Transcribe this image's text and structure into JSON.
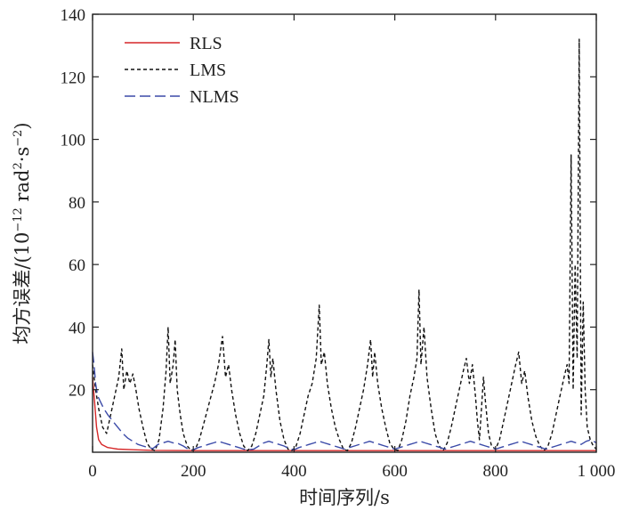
{
  "chart_data": {
    "type": "line",
    "xlabel": "时间序列/s",
    "ylabel_main": "均方误差/(10",
    "ylabel_exp1": "−12",
    "ylabel_mid": " rad",
    "ylabel_exp2": "2",
    "ylabel_mid2": "·s",
    "ylabel_exp3": "−2",
    "ylabel_end": ")",
    "xlim": [
      0,
      1000
    ],
    "ylim": [
      0,
      140
    ],
    "xticks": [
      0,
      200,
      400,
      600,
      800,
      1000
    ],
    "xtick_labels": [
      "0",
      "200",
      "400",
      "600",
      "800",
      "1 000"
    ],
    "yticks": [
      20,
      40,
      60,
      80,
      100,
      120,
      140
    ],
    "ytick_labels": [
      "20",
      "40",
      "60",
      "80",
      "100",
      "120",
      "140"
    ],
    "legend_position": "top-left",
    "series": [
      {
        "name": "RLS",
        "color": "#d62728",
        "dash": "solid",
        "points": [
          [
            0,
            24
          ],
          [
            4,
            16
          ],
          [
            8,
            8
          ],
          [
            12,
            4
          ],
          [
            18,
            2.5
          ],
          [
            30,
            1.5
          ],
          [
            50,
            1.0
          ],
          [
            80,
            0.8
          ],
          [
            120,
            0.6
          ],
          [
            200,
            0.5
          ],
          [
            300,
            0.5
          ],
          [
            400,
            0.5
          ],
          [
            500,
            0.5
          ],
          [
            600,
            0.5
          ],
          [
            700,
            0.5
          ],
          [
            800,
            0.5
          ],
          [
            900,
            0.5
          ],
          [
            1000,
            0.5
          ]
        ]
      },
      {
        "name": "LMS",
        "color": "#111111",
        "dash": "4,3",
        "points": [
          [
            0,
            28
          ],
          [
            6,
            20
          ],
          [
            12,
            14
          ],
          [
            20,
            8
          ],
          [
            28,
            6
          ],
          [
            36,
            12
          ],
          [
            44,
            18
          ],
          [
            52,
            24
          ],
          [
            58,
            33
          ],
          [
            62,
            20
          ],
          [
            68,
            26
          ],
          [
            74,
            22
          ],
          [
            80,
            25
          ],
          [
            86,
            20
          ],
          [
            92,
            14
          ],
          [
            100,
            8
          ],
          [
            108,
            3
          ],
          [
            116,
            1
          ],
          [
            124,
            0.5
          ],
          [
            132,
            4
          ],
          [
            140,
            14
          ],
          [
            146,
            26
          ],
          [
            150,
            40
          ],
          [
            154,
            22
          ],
          [
            160,
            28
          ],
          [
            164,
            36
          ],
          [
            168,
            20
          ],
          [
            174,
            12
          ],
          [
            180,
            6
          ],
          [
            188,
            2
          ],
          [
            196,
            0.5
          ],
          [
            204,
            1
          ],
          [
            212,
            4
          ],
          [
            222,
            10
          ],
          [
            232,
            16
          ],
          [
            242,
            22
          ],
          [
            250,
            28
          ],
          [
            258,
            37
          ],
          [
            264,
            24
          ],
          [
            270,
            28
          ],
          [
            276,
            20
          ],
          [
            284,
            12
          ],
          [
            292,
            6
          ],
          [
            300,
            2
          ],
          [
            308,
            0.5
          ],
          [
            316,
            2
          ],
          [
            324,
            6
          ],
          [
            332,
            12
          ],
          [
            340,
            18
          ],
          [
            346,
            28
          ],
          [
            350,
            36
          ],
          [
            354,
            24
          ],
          [
            358,
            30
          ],
          [
            364,
            20
          ],
          [
            372,
            10
          ],
          [
            380,
            4
          ],
          [
            388,
            1
          ],
          [
            396,
            0.5
          ],
          [
            404,
            2
          ],
          [
            412,
            6
          ],
          [
            420,
            12
          ],
          [
            428,
            18
          ],
          [
            436,
            22
          ],
          [
            444,
            30
          ],
          [
            450,
            47
          ],
          [
            454,
            28
          ],
          [
            460,
            32
          ],
          [
            466,
            22
          ],
          [
            474,
            14
          ],
          [
            482,
            8
          ],
          [
            490,
            4
          ],
          [
            498,
            1
          ],
          [
            506,
            0.5
          ],
          [
            514,
            3
          ],
          [
            522,
            8
          ],
          [
            530,
            14
          ],
          [
            538,
            20
          ],
          [
            546,
            28
          ],
          [
            552,
            36
          ],
          [
            556,
            24
          ],
          [
            560,
            32
          ],
          [
            566,
            22
          ],
          [
            574,
            14
          ],
          [
            582,
            8
          ],
          [
            590,
            3
          ],
          [
            598,
            1
          ],
          [
            606,
            0.5
          ],
          [
            614,
            4
          ],
          [
            622,
            10
          ],
          [
            630,
            18
          ],
          [
            638,
            24
          ],
          [
            644,
            30
          ],
          [
            648,
            52
          ],
          [
            652,
            28
          ],
          [
            658,
            40
          ],
          [
            664,
            24
          ],
          [
            672,
            14
          ],
          [
            680,
            6
          ],
          [
            688,
            2
          ],
          [
            696,
            0.5
          ],
          [
            704,
            3
          ],
          [
            712,
            8
          ],
          [
            720,
            14
          ],
          [
            728,
            20
          ],
          [
            736,
            26
          ],
          [
            742,
            30
          ],
          [
            748,
            22
          ],
          [
            754,
            28
          ],
          [
            760,
            18
          ],
          [
            764,
            10
          ],
          [
            768,
            4
          ],
          [
            772,
            14
          ],
          [
            776,
            24
          ],
          [
            780,
            16
          ],
          [
            786,
            6
          ],
          [
            792,
            2
          ],
          [
            800,
            1
          ],
          [
            808,
            4
          ],
          [
            816,
            10
          ],
          [
            824,
            16
          ],
          [
            832,
            22
          ],
          [
            840,
            28
          ],
          [
            846,
            32
          ],
          [
            852,
            22
          ],
          [
            858,
            26
          ],
          [
            864,
            18
          ],
          [
            872,
            10
          ],
          [
            880,
            5
          ],
          [
            888,
            2
          ],
          [
            896,
            0.5
          ],
          [
            904,
            2
          ],
          [
            912,
            6
          ],
          [
            920,
            12
          ],
          [
            928,
            18
          ],
          [
            936,
            24
          ],
          [
            942,
            28
          ],
          [
            946,
            22
          ],
          [
            950,
            95
          ],
          [
            954,
            20
          ],
          [
            958,
            60
          ],
          [
            962,
            30
          ],
          [
            966,
            132
          ],
          [
            970,
            12
          ],
          [
            974,
            48
          ],
          [
            978,
            20
          ],
          [
            982,
            8
          ],
          [
            988,
            4
          ],
          [
            994,
            2
          ],
          [
            1000,
            1
          ]
        ]
      },
      {
        "name": "NLMS",
        "color": "#3b4aa8",
        "dash": "12,5",
        "points": [
          [
            0,
            32
          ],
          [
            3,
            28
          ],
          [
            6,
            22
          ],
          [
            10,
            18
          ],
          [
            16,
            16
          ],
          [
            22,
            14
          ],
          [
            30,
            12
          ],
          [
            40,
            10
          ],
          [
            50,
            8
          ],
          [
            60,
            6
          ],
          [
            70,
            4.5
          ],
          [
            80,
            3.5
          ],
          [
            90,
            2.5
          ],
          [
            100,
            2
          ],
          [
            110,
            1.5
          ],
          [
            120,
            1.2
          ],
          [
            130,
            2.5
          ],
          [
            140,
            3
          ],
          [
            150,
            3.5
          ],
          [
            160,
            3
          ],
          [
            170,
            2.8
          ],
          [
            180,
            2
          ],
          [
            190,
            1
          ],
          [
            200,
            0.8
          ],
          [
            210,
            1.5
          ],
          [
            220,
            2
          ],
          [
            230,
            2.5
          ],
          [
            240,
            3
          ],
          [
            250,
            3.5
          ],
          [
            260,
            3
          ],
          [
            270,
            2.5
          ],
          [
            280,
            2
          ],
          [
            290,
            1.5
          ],
          [
            300,
            1
          ],
          [
            310,
            0.8
          ],
          [
            320,
            1
          ],
          [
            330,
            2
          ],
          [
            340,
            3
          ],
          [
            350,
            3.5
          ],
          [
            360,
            3
          ],
          [
            370,
            2.5
          ],
          [
            380,
            2
          ],
          [
            390,
            1.2
          ],
          [
            400,
            0.8
          ],
          [
            410,
            1.5
          ],
          [
            420,
            2
          ],
          [
            430,
            2.5
          ],
          [
            440,
            3
          ],
          [
            450,
            3.5
          ],
          [
            460,
            3
          ],
          [
            470,
            2.5
          ],
          [
            480,
            2
          ],
          [
            490,
            1.5
          ],
          [
            500,
            1
          ],
          [
            510,
            1.5
          ],
          [
            520,
            2
          ],
          [
            530,
            2.5
          ],
          [
            540,
            3
          ],
          [
            550,
            3.5
          ],
          [
            560,
            3
          ],
          [
            570,
            2.5
          ],
          [
            580,
            2
          ],
          [
            590,
            1.5
          ],
          [
            600,
            1
          ],
          [
            610,
            1.5
          ],
          [
            620,
            2
          ],
          [
            630,
            2.5
          ],
          [
            640,
            3
          ],
          [
            650,
            3.5
          ],
          [
            660,
            3
          ],
          [
            670,
            2.5
          ],
          [
            680,
            2
          ],
          [
            690,
            1.5
          ],
          [
            700,
            1
          ],
          [
            710,
            1.5
          ],
          [
            720,
            2
          ],
          [
            730,
            2.5
          ],
          [
            740,
            3
          ],
          [
            750,
            3.5
          ],
          [
            760,
            3
          ],
          [
            770,
            2.5
          ],
          [
            780,
            2
          ],
          [
            790,
            1.5
          ],
          [
            800,
            1
          ],
          [
            810,
            1.5
          ],
          [
            820,
            2
          ],
          [
            830,
            2.5
          ],
          [
            840,
            3
          ],
          [
            850,
            3.5
          ],
          [
            860,
            3
          ],
          [
            870,
            2.5
          ],
          [
            880,
            2
          ],
          [
            890,
            1.5
          ],
          [
            900,
            1
          ],
          [
            910,
            1.5
          ],
          [
            920,
            2
          ],
          [
            930,
            2.5
          ],
          [
            940,
            3
          ],
          [
            950,
            3.5
          ],
          [
            960,
            3
          ],
          [
            970,
            2.5
          ],
          [
            980,
            3.5
          ],
          [
            990,
            4
          ],
          [
            1000,
            3
          ]
        ]
      }
    ]
  }
}
